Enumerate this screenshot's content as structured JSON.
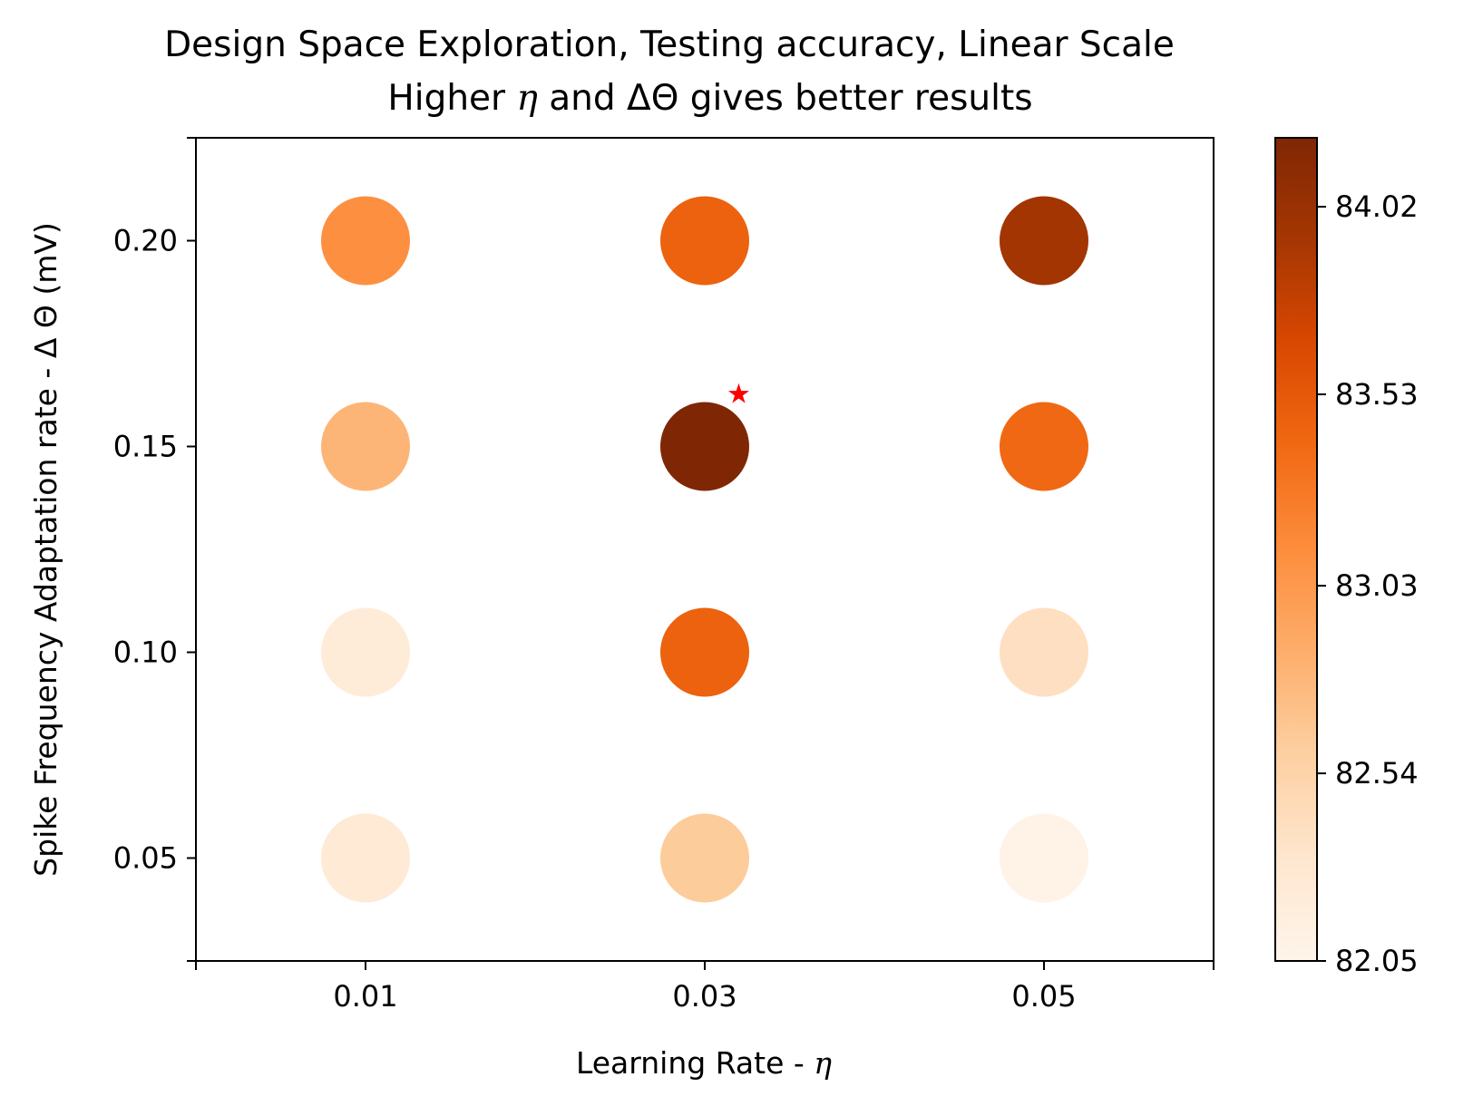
{
  "chart_data": {
    "type": "scatter",
    "title_line1": "Design Space Exploration, Testing accuracy, Linear Scale",
    "title_line2_prefix": "Higher ",
    "title_line2_eta": "η",
    "title_line2_suffix": " and ΔΘ gives better results",
    "xlabel_prefix": "Learning Rate - ",
    "xlabel_eta": "η",
    "ylabel": "Spike Frequency Adaptation rate - Δ Θ (mV)",
    "x_ticks": [
      "0.01",
      "0.03",
      "0.05"
    ],
    "y_ticks": [
      "0.05",
      "0.10",
      "0.15",
      "0.20"
    ],
    "xlim": [
      0.0,
      0.06
    ],
    "ylim": [
      0.025,
      0.225
    ],
    "grid": false,
    "colormap": "Oranges",
    "colorbar_ticks": [
      "82.05",
      "82.54",
      "83.03",
      "83.53",
      "84.02"
    ],
    "colorbar_range": [
      82.05,
      84.2
    ],
    "points": [
      {
        "x": 0.01,
        "y": 0.05,
        "value": 82.25
      },
      {
        "x": 0.01,
        "y": 0.1,
        "value": 82.22
      },
      {
        "x": 0.01,
        "y": 0.15,
        "value": 82.8
      },
      {
        "x": 0.01,
        "y": 0.2,
        "value": 83.1
      },
      {
        "x": 0.03,
        "y": 0.05,
        "value": 82.62
      },
      {
        "x": 0.03,
        "y": 0.1,
        "value": 83.45
      },
      {
        "x": 0.03,
        "y": 0.15,
        "value": 84.2
      },
      {
        "x": 0.03,
        "y": 0.2,
        "value": 83.45
      },
      {
        "x": 0.05,
        "y": 0.05,
        "value": 82.1
      },
      {
        "x": 0.05,
        "y": 0.1,
        "value": 82.4
      },
      {
        "x": 0.05,
        "y": 0.15,
        "value": 83.4
      },
      {
        "x": 0.05,
        "y": 0.2,
        "value": 83.95
      }
    ],
    "best_marker": {
      "x": 0.032,
      "y": 0.163,
      "symbol": "★",
      "color": "#ff0000"
    }
  }
}
